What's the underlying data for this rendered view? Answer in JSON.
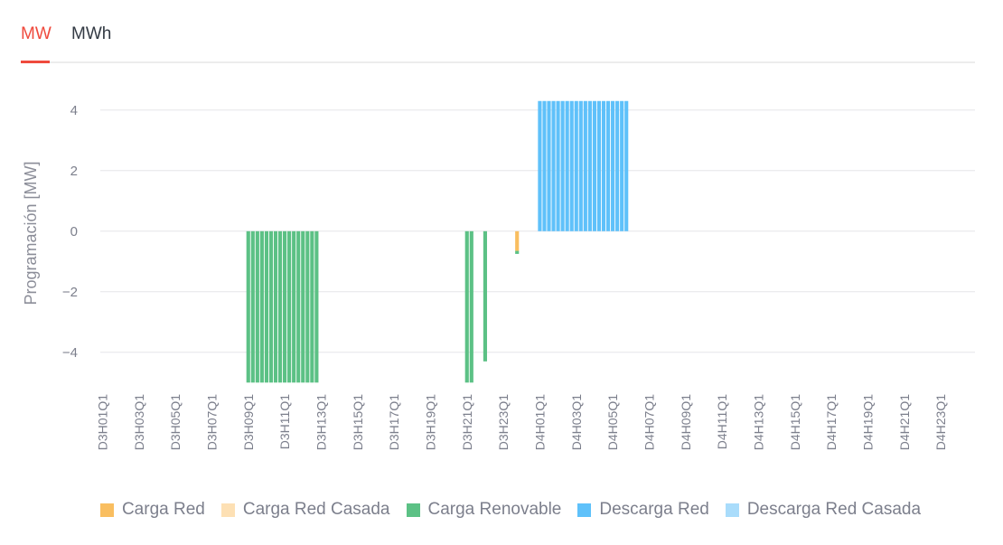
{
  "tabs": [
    {
      "label": "MW",
      "active": true
    },
    {
      "label": "MWh",
      "active": false
    }
  ],
  "chart_data": {
    "type": "bar",
    "stacked": true,
    "ylabel": "Programación [MW]",
    "xlabel": "",
    "ylim": [
      -5.2,
      4.8
    ],
    "yticks": [
      4,
      2,
      0,
      -2,
      -4
    ],
    "ytick_labels": [
      "4",
      "2",
      "0",
      "−2",
      "−4"
    ],
    "grid": true,
    "legend_position": "bottom",
    "days": [
      "D3",
      "D4"
    ],
    "hours_per_day": 24,
    "quarters_per_hour": 4,
    "xtick_labels": [
      "D3H01Q1",
      "D3H03Q1",
      "D3H05Q1",
      "D3H07Q1",
      "D3H09Q1",
      "D3H11Q1",
      "D3H13Q1",
      "D3H15Q1",
      "D3H17Q1",
      "D3H19Q1",
      "D3H21Q1",
      "D3H23Q1",
      "D4H01Q1",
      "D4H03Q1",
      "D4H05Q1",
      "D4H07Q1",
      "D4H09Q1",
      "D4H11Q1",
      "D4H13Q1",
      "D4H15Q1",
      "D4H17Q1",
      "D4H19Q1",
      "D4H21Q1",
      "D4H23Q1"
    ],
    "series": [
      {
        "name": "Carga Red",
        "color": "#f9be60",
        "values": {
          "D3H23Q4": -0.65
        }
      },
      {
        "name": "Carga Red Casada",
        "color": "#fde0b4",
        "values": {}
      },
      {
        "name": "Carga Renovable",
        "color": "#5cc185",
        "values": {
          "D3H09Q1": -5,
          "D3H09Q2": -5,
          "D3H09Q3": -5,
          "D3H09Q4": -5,
          "D3H10Q1": -5,
          "D3H10Q2": -5,
          "D3H10Q3": -5,
          "D3H10Q4": -5,
          "D3H11Q1": -5,
          "D3H11Q2": -5,
          "D3H11Q3": -5,
          "D3H11Q4": -5,
          "D3H12Q1": -5,
          "D3H12Q2": -5,
          "D3H12Q3": -5,
          "D3H12Q4": -5,
          "D3H21Q1": -5,
          "D3H21Q2": -5,
          "D3H22Q1": -4.3,
          "D3H23Q4": -0.1
        }
      },
      {
        "name": "Descarga Red",
        "color": "#5fc1fa",
        "values": {
          "D4H01Q1": 4.3,
          "D4H01Q2": 4.3,
          "D4H01Q3": 4.3,
          "D4H01Q4": 4.3,
          "D4H02Q1": 4.3,
          "D4H02Q2": 4.3,
          "D4H02Q3": 4.3,
          "D4H02Q4": 4.3,
          "D4H03Q1": 4.3,
          "D4H03Q2": 4.3,
          "D4H03Q3": 4.3,
          "D4H03Q4": 4.3,
          "D4H04Q1": 4.3,
          "D4H04Q2": 4.3,
          "D4H04Q3": 4.3,
          "D4H04Q4": 4.3,
          "D4H05Q1": 4.3,
          "D4H05Q2": 4.3,
          "D4H05Q3": 4.3,
          "D4H05Q4": 4.3
        }
      },
      {
        "name": "Descarga Red Casada",
        "color": "#a9dcfb",
        "values": {}
      }
    ]
  }
}
